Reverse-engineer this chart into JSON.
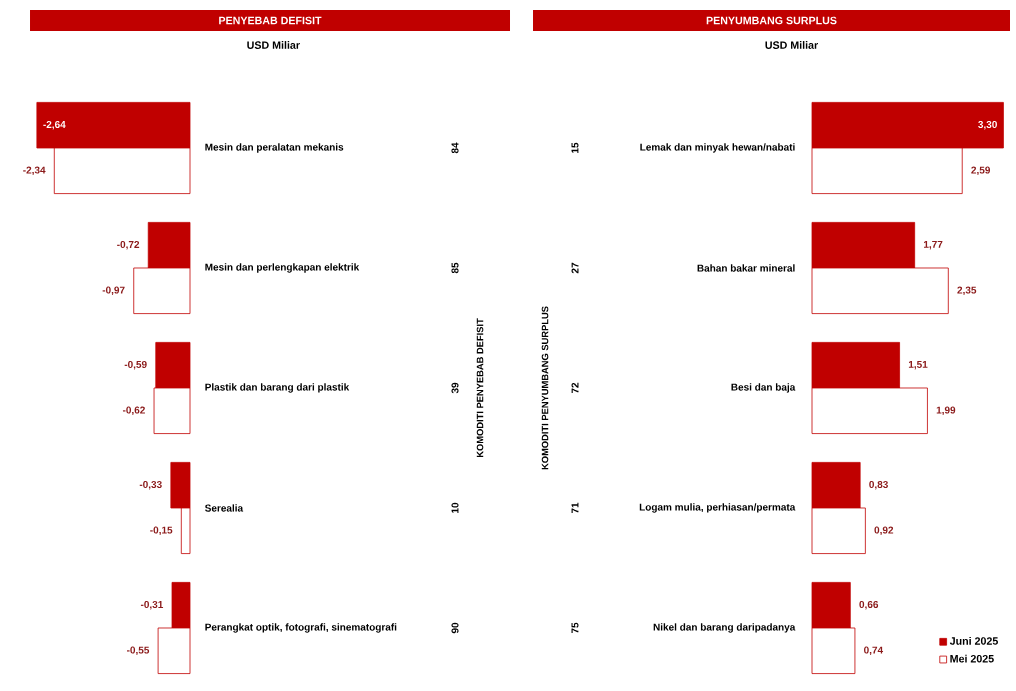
{
  "chart_data": [
    {
      "type": "bar",
      "orientation": "horizontal",
      "title": "PENYEBAB DEFISIT",
      "subtitle": "USD Miliar",
      "ylabel": "KOMODITI PENYEBAB DEFISIT",
      "categories": [
        "Mesin dan peralatan  mekanis",
        "Mesin dan perlengkapan elektrik",
        "Plastik dan barang dari plastik",
        "Serealia",
        "Perangkat optik, fotografi, sinematografi"
      ],
      "series": [
        {
          "color": "#c00000",
          "values": [
            -2.64,
            -0.72,
            -0.59,
            -0.33,
            -0.31
          ],
          "value_labels": [
            "-2,64",
            "-0,72",
            "-0,59",
            "-0,33",
            "-0,31"
          ]
        },
        {
          "color": "#ffffff",
          "values": [
            -2.34,
            -0.97,
            -0.62,
            -0.15,
            -0.55
          ],
          "value_labels": [
            "-2,34",
            "-0,97",
            "-0,62",
            "-0,15",
            "-0,55"
          ]
        }
      ],
      "annotations": [
        "84",
        "85",
        "39",
        "10",
        "90"
      ]
    },
    {
      "type": "bar",
      "orientation": "horizontal",
      "title": "PENYUMBANG SURPLUS",
      "subtitle": "USD Miliar",
      "ylabel": "KOMODITI PENYUMBANG SURPLUS",
      "legend": "bottom right",
      "categories": [
        "Lemak dan minyak hewan/nabati",
        "Bahan bakar mineral",
        "Besi dan baja",
        "Logam mulia, perhiasan/permata",
        "Nikel dan barang daripadanya"
      ],
      "series": [
        {
          "name": "Juni 2025",
          "color": "#c00000",
          "values": [
            3.3,
            1.77,
            1.51,
            0.83,
            0.66
          ],
          "value_labels": [
            "3,30",
            "1,77",
            "1,51",
            "0,83",
            "0,66"
          ]
        },
        {
          "name": "Mei 2025",
          "color": "#ffffff",
          "values": [
            2.59,
            2.35,
            1.99,
            0.92,
            0.74
          ],
          "value_labels": [
            "2,59",
            "2,35",
            "1,99",
            "0,92",
            "0,74"
          ]
        }
      ],
      "annotations": [
        "15",
        "27",
        "72",
        "71",
        "75"
      ]
    }
  ]
}
